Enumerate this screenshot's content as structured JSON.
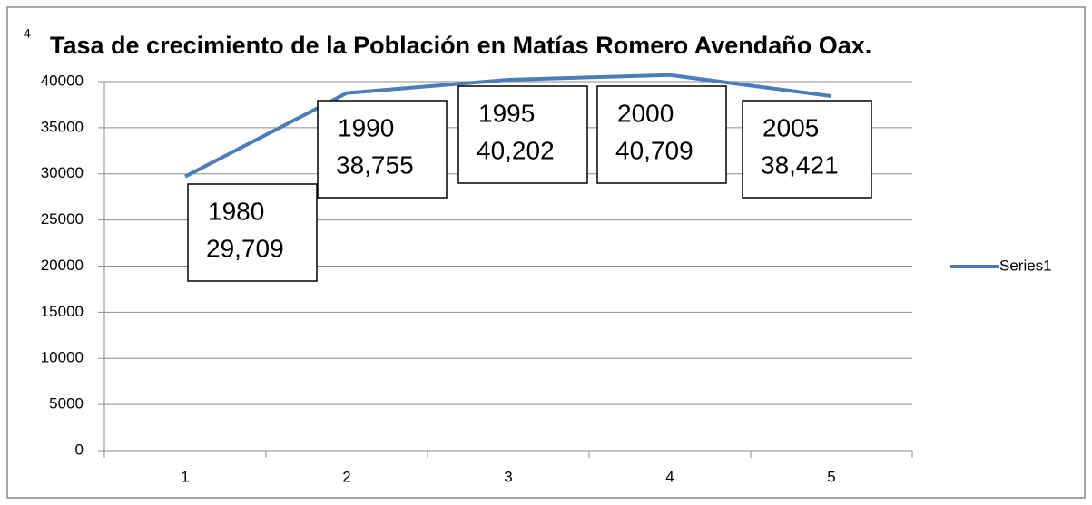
{
  "chart_data": {
    "type": "line",
    "title": "Tasa de crecimiento de la Población en Matías Romero Avendaño Oax.",
    "corner_mark": "4",
    "categories": [
      "1",
      "2",
      "3",
      "4",
      "5"
    ],
    "series": [
      {
        "name": "Series1",
        "color": "#4a7ebb",
        "values": [
          29709,
          38755,
          40202,
          40709,
          38421
        ],
        "labels": [
          "1980",
          "1990",
          "1995",
          "2000",
          "2005"
        ],
        "value_labels": [
          "29,709",
          "38,755",
          "40,202",
          "40,709",
          "38,421"
        ]
      }
    ],
    "ylim": [
      0,
      40000
    ],
    "yticks": [
      0,
      5000,
      10000,
      15000,
      20000,
      25000,
      30000,
      35000,
      40000
    ],
    "grid": true,
    "legend": "right"
  }
}
